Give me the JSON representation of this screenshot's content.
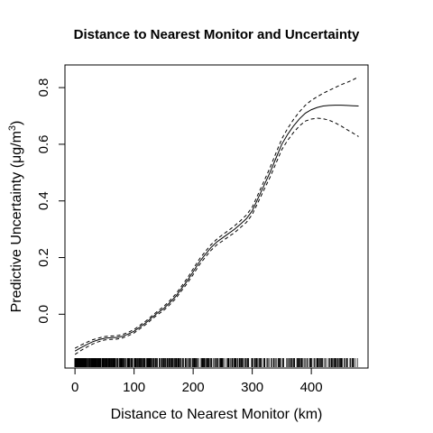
{
  "chart_data": {
    "type": "line",
    "title": "Distance to Nearest Monitor and Uncertainty",
    "xlabel": "Distance to Nearest Monitor (km)",
    "ylabel_prefix": "Predictive Uncertainty (μg/m",
    "ylabel_sup": "3",
    "ylabel_suffix": ")",
    "xlim": [
      -17,
      496
    ],
    "ylim": [
      -0.19,
      0.88
    ],
    "x_ticks": [
      0,
      100,
      200,
      300,
      400
    ],
    "y_ticks": [
      0.0,
      0.2,
      0.4,
      0.6,
      0.8
    ],
    "x_tick_labels": [
      "0",
      "100",
      "200",
      "300",
      "400"
    ],
    "y_tick_labels": [
      "0.0",
      "0.2",
      "0.4",
      "0.6",
      "0.8"
    ],
    "grid": false,
    "series": [
      {
        "style": "solid",
        "x": [
          0,
          10,
          20,
          30,
          40,
          50,
          60,
          70,
          80,
          90,
          100,
          110,
          120,
          130,
          140,
          150,
          160,
          170,
          180,
          190,
          200,
          210,
          220,
          230,
          240,
          250,
          260,
          270,
          280,
          290,
          300,
          310,
          320,
          330,
          340,
          350,
          360,
          370,
          380,
          390,
          400,
          410,
          420,
          430,
          440,
          450,
          460,
          470,
          480
        ],
        "values": [
          -0.13,
          -0.118,
          -0.107,
          -0.097,
          -0.09,
          -0.085,
          -0.083,
          -0.082,
          -0.078,
          -0.07,
          -0.06,
          -0.045,
          -0.03,
          -0.012,
          0.005,
          0.02,
          0.04,
          0.062,
          0.09,
          0.118,
          0.15,
          0.183,
          0.21,
          0.235,
          0.255,
          0.27,
          0.285,
          0.3,
          0.318,
          0.337,
          0.365,
          0.41,
          0.455,
          0.5,
          0.55,
          0.6,
          0.635,
          0.665,
          0.69,
          0.71,
          0.722,
          0.73,
          0.735,
          0.737,
          0.738,
          0.738,
          0.737,
          0.736,
          0.735
        ]
      },
      {
        "style": "dashed",
        "x": [
          0,
          10,
          20,
          30,
          40,
          50,
          60,
          70,
          80,
          90,
          100,
          110,
          120,
          130,
          140,
          150,
          160,
          170,
          180,
          190,
          200,
          210,
          220,
          230,
          240,
          250,
          260,
          270,
          280,
          290,
          300,
          310,
          320,
          330,
          340,
          350,
          360,
          370,
          380,
          390,
          400,
          410,
          420,
          430,
          440,
          450,
          460,
          470,
          480
        ],
        "values": [
          -0.12,
          -0.109,
          -0.099,
          -0.09,
          -0.084,
          -0.079,
          -0.077,
          -0.076,
          -0.072,
          -0.064,
          -0.054,
          -0.039,
          -0.024,
          -0.006,
          0.011,
          0.027,
          0.047,
          0.07,
          0.098,
          0.127,
          0.16,
          0.193,
          0.22,
          0.245,
          0.265,
          0.281,
          0.296,
          0.312,
          0.33,
          0.35,
          0.378,
          0.424,
          0.47,
          0.517,
          0.568,
          0.619,
          0.656,
          0.688,
          0.715,
          0.738,
          0.755,
          0.768,
          0.78,
          0.79,
          0.8,
          0.81,
          0.818,
          0.827,
          0.838
        ]
      },
      {
        "style": "dashed",
        "x": [
          0,
          10,
          20,
          30,
          40,
          50,
          60,
          70,
          80,
          90,
          100,
          110,
          120,
          130,
          140,
          150,
          160,
          170,
          180,
          190,
          200,
          210,
          220,
          230,
          240,
          250,
          260,
          270,
          280,
          290,
          300,
          310,
          320,
          330,
          340,
          350,
          360,
          370,
          380,
          390,
          400,
          410,
          420,
          430,
          440,
          450,
          460,
          470,
          480
        ],
        "values": [
          -0.142,
          -0.128,
          -0.116,
          -0.105,
          -0.097,
          -0.091,
          -0.089,
          -0.088,
          -0.084,
          -0.076,
          -0.066,
          -0.051,
          -0.036,
          -0.018,
          -0.001,
          0.013,
          0.033,
          0.054,
          0.082,
          0.109,
          0.14,
          0.173,
          0.2,
          0.225,
          0.245,
          0.259,
          0.274,
          0.288,
          0.306,
          0.324,
          0.352,
          0.396,
          0.44,
          0.483,
          0.532,
          0.581,
          0.614,
          0.642,
          0.665,
          0.682,
          0.689,
          0.692,
          0.69,
          0.685,
          0.676,
          0.665,
          0.652,
          0.64,
          0.627
        ]
      }
    ],
    "rug": {
      "x_min": 0,
      "x_max": 480,
      "count": 900
    }
  }
}
